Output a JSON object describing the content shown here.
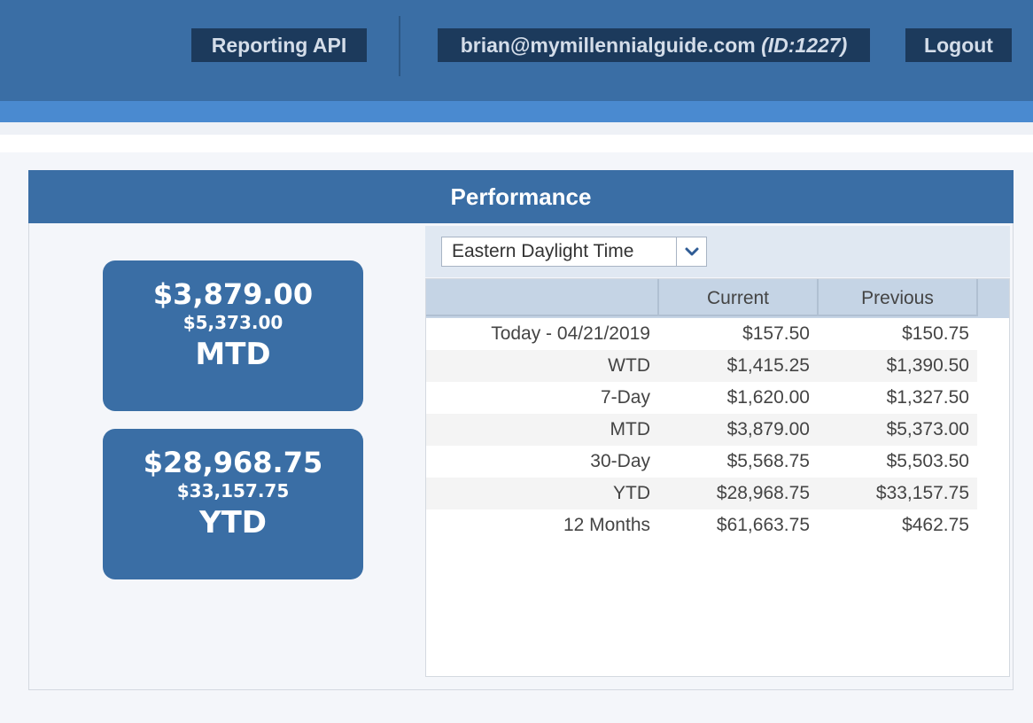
{
  "header": {
    "reporting_api_label": "Reporting API",
    "user_email": "brian@mymillennialguide.com",
    "user_id": "(ID:1227)",
    "logout_label": "Logout"
  },
  "performance": {
    "title": "Performance",
    "cards": [
      {
        "current": "$3,879.00",
        "previous": "$5,373.00",
        "label": "MTD"
      },
      {
        "current": "$28,968.75",
        "previous": "$33,157.75",
        "label": "YTD"
      }
    ],
    "timezone": {
      "selected": "Eastern Daylight Time"
    },
    "table": {
      "columns": [
        "",
        "Current",
        "Previous"
      ],
      "rows": [
        {
          "label": "Today - 04/21/2019",
          "current": "$157.50",
          "previous": "$150.75"
        },
        {
          "label": "WTD",
          "current": "$1,415.25",
          "previous": "$1,390.50"
        },
        {
          "label": "7-Day",
          "current": "$1,620.00",
          "previous": "$1,327.50"
        },
        {
          "label": "MTD",
          "current": "$3,879.00",
          "previous": "$5,373.00"
        },
        {
          "label": "30-Day",
          "current": "$5,568.75",
          "previous": "$5,503.50"
        },
        {
          "label": "YTD",
          "current": "$28,968.75",
          "previous": "$33,157.75"
        },
        {
          "label": "12 Months",
          "current": "$61,663.75",
          "previous": "$462.75"
        }
      ]
    }
  },
  "icons": {
    "dropdown": "chevron-down-icon"
  },
  "colors": {
    "header_blue": "#3a6ea5",
    "header_stripe": "#4a8ad0",
    "button_dark": "#1c3a5c",
    "table_header": "#c5d4e5"
  }
}
